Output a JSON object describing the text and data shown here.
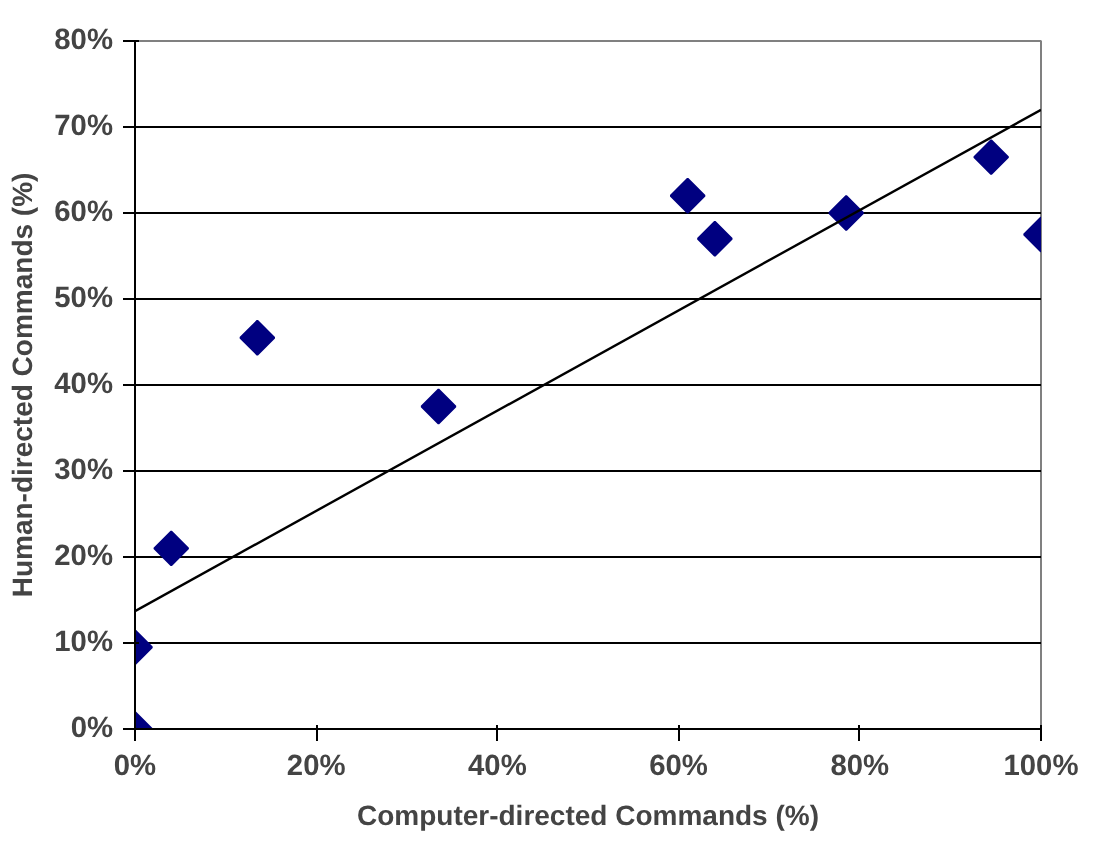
{
  "chart_data": {
    "type": "scatter",
    "xlabel": "Computer-directed Commands (%)",
    "ylabel": "Human-directed Commands (%)",
    "xlim": [
      0,
      100
    ],
    "ylim": [
      0,
      80
    ],
    "xticks": [
      {
        "value": 0,
        "label": "0%"
      },
      {
        "value": 20,
        "label": "20%"
      },
      {
        "value": 40,
        "label": "40%"
      },
      {
        "value": 60,
        "label": "60%"
      },
      {
        "value": 80,
        "label": "80%"
      },
      {
        "value": 100,
        "label": "100%"
      }
    ],
    "yticks": [
      {
        "value": 0,
        "label": "0%"
      },
      {
        "value": 10,
        "label": "10%"
      },
      {
        "value": 20,
        "label": "20%"
      },
      {
        "value": 30,
        "label": "30%"
      },
      {
        "value": 40,
        "label": "40%"
      },
      {
        "value": 50,
        "label": "50%"
      },
      {
        "value": 60,
        "label": "60%"
      },
      {
        "value": 70,
        "label": "70%"
      },
      {
        "value": 80,
        "label": "80%"
      }
    ],
    "grid": "y",
    "series": [
      {
        "marker": "diamond",
        "color": "#000080",
        "x": [
          0,
          0,
          4,
          13.5,
          33.5,
          61,
          64,
          78.5,
          94.5,
          100
        ],
        "values": [
          0,
          9.5,
          21,
          45.5,
          37.5,
          62,
          57,
          60,
          66.5,
          57.5
        ]
      },
      {
        "type": "line",
        "marker": "none",
        "color": "#000000",
        "x": [
          0,
          100
        ],
        "values": [
          13.7,
          72
        ]
      }
    ]
  }
}
